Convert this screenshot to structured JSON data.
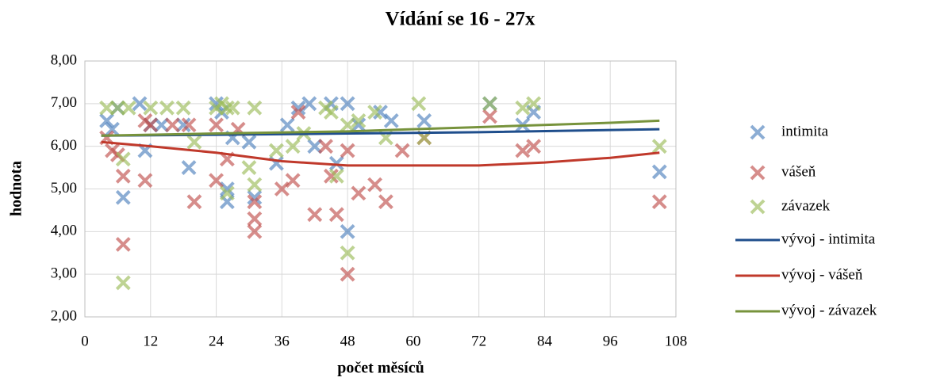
{
  "chart_data": {
    "type": "scatter",
    "title": "Vídání se 16 - 27x",
    "x_label": "počet měsíců",
    "y_label": "hodnota",
    "xlim": [
      0,
      108
    ],
    "xticks": [
      0,
      12,
      24,
      36,
      48,
      60,
      72,
      84,
      96,
      108
    ],
    "ylim": [
      2,
      8
    ],
    "yticks": [
      {
        "value": 2,
        "label": "2,00"
      },
      {
        "value": 3,
        "label": "3,00"
      },
      {
        "value": 4,
        "label": "4,00"
      },
      {
        "value": 5,
        "label": "5,00"
      },
      {
        "value": 6,
        "label": "6,00"
      },
      {
        "value": 7,
        "label": "7,00"
      },
      {
        "value": 8,
        "label": "8,00"
      }
    ],
    "grid": true,
    "legend": "right",
    "series": [
      {
        "name": "intimita",
        "type": "marker",
        "color": "#4f81bd",
        "x": [
          4,
          5,
          6,
          7,
          10,
          11,
          12,
          14,
          18,
          19,
          24,
          25,
          26,
          26,
          27,
          30,
          31,
          35,
          37,
          39,
          41,
          42,
          45,
          46,
          48,
          48,
          50,
          54,
          56,
          62,
          74,
          80,
          82,
          105
        ],
        "values": [
          6.6,
          6.4,
          6.9,
          4.8,
          7.0,
          5.9,
          6.5,
          6.5,
          6.5,
          5.5,
          7.0,
          6.8,
          4.7,
          5.0,
          6.2,
          6.1,
          4.8,
          5.6,
          6.5,
          6.9,
          7.0,
          6.0,
          7.0,
          5.6,
          7.0,
          4.0,
          6.5,
          6.8,
          6.6,
          6.6,
          7.0,
          6.5,
          6.8,
          5.4
        ]
      },
      {
        "name": "vášeň",
        "type": "marker",
        "color": "#c0504d",
        "x": [
          4,
          5,
          6,
          7,
          7,
          11,
          11,
          12,
          16,
          19,
          20,
          24,
          24,
          26,
          28,
          31,
          31,
          31,
          36,
          38,
          39,
          42,
          44,
          45,
          46,
          48,
          48,
          50,
          53,
          55,
          58,
          62,
          74,
          80,
          82,
          105
        ],
        "values": [
          6.2,
          5.9,
          5.8,
          3.7,
          5.3,
          6.6,
          5.2,
          6.5,
          6.5,
          6.5,
          4.7,
          6.5,
          5.2,
          5.7,
          6.4,
          4.3,
          4.0,
          4.7,
          5.0,
          5.2,
          6.8,
          4.4,
          6.0,
          5.3,
          4.4,
          5.9,
          3.0,
          4.9,
          5.1,
          4.7,
          5.9,
          6.2,
          6.7,
          5.9,
          6.0,
          4.7
        ]
      },
      {
        "name": "závazek",
        "type": "marker",
        "color": "#9bbb59",
        "x": [
          4,
          6,
          7,
          7,
          8,
          12,
          15,
          18,
          20,
          24,
          25,
          26,
          26,
          27,
          30,
          31,
          31,
          35,
          38,
          40,
          44,
          45,
          46,
          48,
          48,
          50,
          53,
          55,
          61,
          62,
          74,
          80,
          82,
          105
        ],
        "values": [
          6.9,
          6.9,
          2.8,
          5.7,
          6.9,
          6.9,
          6.9,
          6.9,
          6.1,
          6.9,
          7.0,
          4.9,
          6.9,
          6.9,
          5.5,
          6.9,
          5.1,
          5.9,
          6.0,
          6.3,
          6.9,
          6.8,
          5.3,
          3.5,
          6.5,
          6.6,
          6.8,
          6.2,
          7.0,
          6.2,
          7.0,
          6.9,
          7.0,
          6.0
        ]
      },
      {
        "name": "vývoj - intimita",
        "type": "line",
        "color": "#1f4e8c",
        "x": [
          3,
          24,
          48,
          72,
          105
        ],
        "values": [
          6.25,
          6.27,
          6.3,
          6.33,
          6.4
        ]
      },
      {
        "name": "vývoj - vášeň",
        "type": "line",
        "color": "#c0392b",
        "x": [
          3,
          12,
          24,
          36,
          48,
          60,
          72,
          84,
          96,
          105
        ],
        "values": [
          6.1,
          6.0,
          5.85,
          5.65,
          5.55,
          5.55,
          5.55,
          5.62,
          5.73,
          5.85
        ]
      },
      {
        "name": "vývoj - závazek",
        "type": "line",
        "color": "#77933c",
        "x": [
          3,
          24,
          48,
          72,
          96,
          105
        ],
        "values": [
          6.25,
          6.3,
          6.35,
          6.45,
          6.55,
          6.6
        ]
      }
    ]
  }
}
